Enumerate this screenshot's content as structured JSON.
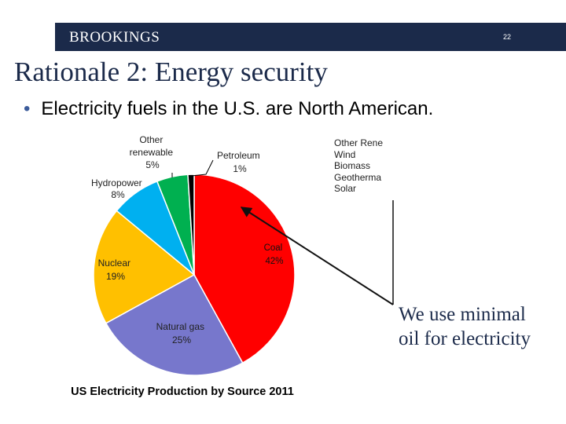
{
  "header": {
    "brand": "BROOKINGS",
    "slide_number": "22"
  },
  "title": "Rationale 2:  Energy security",
  "bullet": "Electricity fuels in the U.S. are North American.",
  "renewables_list": [
    "Other Rene",
    "Wind",
    "Biomass",
    "Geotherma",
    "Solar"
  ],
  "callout": {
    "line1": "We use minimal",
    "line2": "oil for electricity"
  },
  "colors": {
    "coal": "#ff0000",
    "natural_gas": "#7777cc",
    "nuclear": "#ffc000",
    "hydropower": "#00b0f0",
    "other_renewable": "#00b050",
    "petroleum": "#000000",
    "header": "#1b2a4a"
  },
  "chart_data": {
    "type": "pie",
    "title": "US Electricity Production by Source 2011",
    "slices": [
      {
        "key": "coal",
        "label": "Coal",
        "value": 42,
        "value_label": "42%"
      },
      {
        "key": "natural_gas",
        "label": "Natural gas",
        "value": 25,
        "value_label": "25%"
      },
      {
        "key": "nuclear",
        "label": "Nuclear",
        "value": 19,
        "value_label": "19%"
      },
      {
        "key": "hydropower",
        "label": "Hydropower",
        "value": 8,
        "value_label": "8%"
      },
      {
        "key": "other_renewable",
        "label": "Other renewable",
        "value": 5,
        "value_label": "5%"
      },
      {
        "key": "petroleum",
        "label": "Petroleum",
        "value": 1,
        "value_label": "1%"
      }
    ]
  }
}
